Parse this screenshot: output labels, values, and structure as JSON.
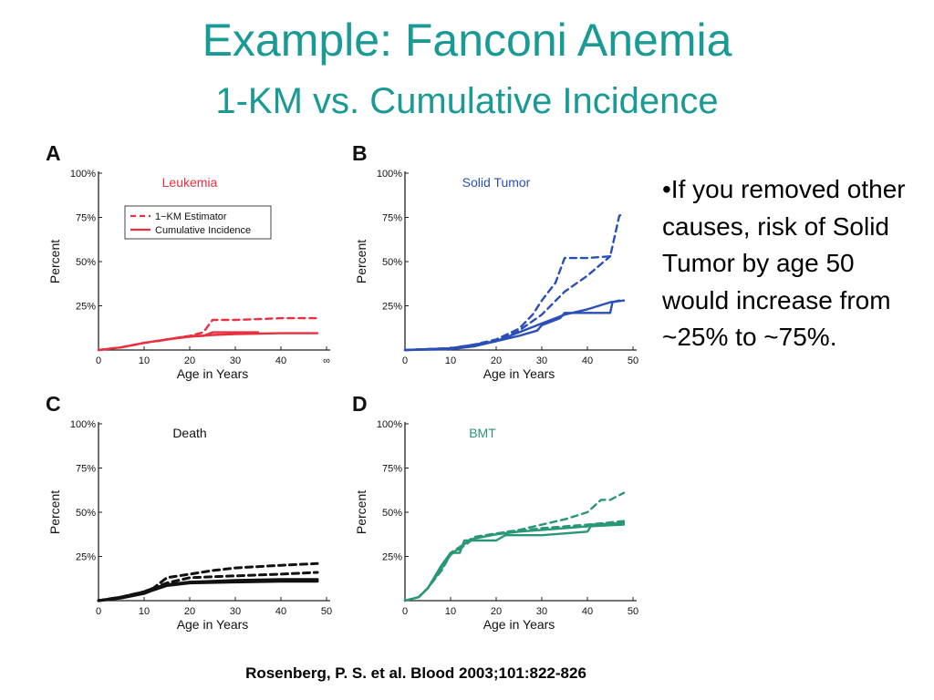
{
  "slide": {
    "title": "Example: Fanconi Anemia",
    "subtitle": "1-KM vs. Cumulative Incidence",
    "bullet": "•If you removed other causes, risk of Solid Tumor by age 50 would increase from ~25% to ~75%.",
    "citation": "Rosenberg, P. S. et al. Blood 2003;101:822-826"
  },
  "colors": {
    "title": "#1a9a95",
    "leukemia": "#e8303e",
    "solid_tumor": "#2b4fb8",
    "death": "#111111",
    "bmt": "#2a9678"
  },
  "chart_data": [
    {
      "type": "line",
      "panel_letter": "A",
      "title": "Leukemia",
      "xlabel": "Age in Years",
      "ylabel": "Percent",
      "xlim": [
        0,
        50
      ],
      "ylim": [
        0,
        100
      ],
      "x_ticks": [
        "0",
        "10",
        "20",
        "30",
        "40",
        "∞"
      ],
      "y_ticks": [
        "25%",
        "50%",
        "75%",
        "100%"
      ],
      "grid": false,
      "legend": {
        "position": "top-left",
        "entries": [
          "1−KM Estimator",
          "Cumulative Incidence"
        ]
      },
      "color": "#e8303e",
      "series": [
        {
          "name": "1−KM Estimator",
          "style": "dashed",
          "x": [
            0,
            5,
            10,
            15,
            20,
            23,
            25,
            30,
            35,
            40,
            48
          ],
          "y": [
            0,
            1.5,
            4,
            6,
            8,
            10,
            17,
            17,
            17.5,
            18,
            18
          ]
        },
        {
          "name": "Cumulative Incidence",
          "style": "solid",
          "x": [
            0,
            5,
            10,
            15,
            20,
            25,
            30,
            40,
            48
          ],
          "y": [
            0,
            1.5,
            4,
            6,
            7.5,
            8.5,
            9,
            9.5,
            9.5
          ]
        },
        {
          "style": "solid",
          "x": [
            13,
            15,
            20,
            23,
            25,
            30,
            35
          ],
          "y": [
            5,
            6,
            8,
            8,
            10,
            10,
            10
          ]
        }
      ]
    },
    {
      "type": "line",
      "panel_letter": "B",
      "title": "Solid Tumor",
      "xlabel": "Age in Years",
      "ylabel": "Percent",
      "xlim": [
        0,
        50
      ],
      "ylim": [
        0,
        100
      ],
      "x_ticks": [
        "0",
        "10",
        "20",
        "30",
        "40",
        "50"
      ],
      "y_ticks": [
        "25%",
        "50%",
        "75%",
        "100%"
      ],
      "grid": false,
      "color": "#2b4fb8",
      "series": [
        {
          "style": "dashed",
          "x": [
            0,
            10,
            15,
            20,
            25,
            28,
            30,
            33,
            35,
            40,
            45,
            47,
            48
          ],
          "y": [
            0,
            1,
            3,
            6,
            12,
            20,
            28,
            38,
            52,
            52,
            53,
            76,
            77
          ]
        },
        {
          "style": "dashed",
          "x": [
            0,
            10,
            15,
            20,
            25,
            30,
            35,
            40,
            45
          ],
          "y": [
            0,
            1,
            2,
            5,
            11,
            20,
            33,
            42,
            53
          ]
        },
        {
          "style": "solid",
          "x": [
            0,
            10,
            15,
            20,
            25,
            30,
            35,
            40,
            45,
            48
          ],
          "y": [
            0,
            0.5,
            2,
            5,
            10,
            15,
            20,
            23,
            27,
            28
          ]
        },
        {
          "style": "solid",
          "x": [
            0,
            10,
            15,
            20,
            25,
            29,
            30,
            34,
            35,
            45,
            45.5,
            47
          ],
          "y": [
            0,
            1,
            3,
            5,
            8,
            11,
            14,
            18,
            21,
            21,
            27,
            28
          ]
        }
      ]
    },
    {
      "type": "line",
      "panel_letter": "C",
      "title": "Death",
      "xlabel": "Age in Years",
      "ylabel": "Percent",
      "xlim": [
        0,
        50
      ],
      "ylim": [
        0,
        100
      ],
      "x_ticks": [
        "0",
        "10",
        "20",
        "30",
        "40",
        "50"
      ],
      "y_ticks": [
        "25%",
        "50%",
        "75%",
        "100%"
      ],
      "grid": false,
      "color": "#111111",
      "series": [
        {
          "style": "dashed",
          "x": [
            0,
            5,
            10,
            12,
            15,
            20,
            25,
            30,
            40,
            48
          ],
          "y": [
            0,
            2,
            5,
            7,
            13,
            15,
            17,
            18.5,
            20,
            21
          ]
        },
        {
          "style": "dashed",
          "x": [
            0,
            5,
            10,
            15,
            20,
            30,
            40,
            48
          ],
          "y": [
            0,
            2,
            5,
            10,
            13,
            14,
            15,
            16
          ]
        },
        {
          "style": "solid",
          "x": [
            0,
            5,
            10,
            12,
            15,
            20,
            25,
            30,
            40,
            48
          ],
          "y": [
            0,
            2,
            5,
            7,
            9,
            10.5,
            11,
            11.5,
            12,
            12
          ]
        },
        {
          "style": "solid",
          "x": [
            0,
            5,
            10,
            12,
            15,
            20,
            30,
            40,
            48
          ],
          "y": [
            0,
            1.5,
            4,
            6,
            8.5,
            10,
            10.5,
            11,
            11
          ]
        }
      ]
    },
    {
      "type": "line",
      "panel_letter": "D",
      "title": "BMT",
      "xlabel": "Age in Years",
      "ylabel": "Percent",
      "xlim": [
        0,
        50
      ],
      "ylim": [
        0,
        100
      ],
      "x_ticks": [
        "0",
        "10",
        "20",
        "30",
        "40",
        "50"
      ],
      "y_ticks": [
        "25%",
        "50%",
        "75%",
        "100%"
      ],
      "grid": false,
      "color": "#2a9678",
      "series": [
        {
          "style": "dashed",
          "x": [
            0,
            3,
            5,
            8,
            10,
            13,
            15,
            20,
            25,
            30,
            35,
            40,
            43,
            45,
            48
          ],
          "y": [
            0,
            2,
            7,
            18,
            27,
            32,
            36,
            38,
            40,
            43,
            46,
            50,
            57,
            57,
            61
          ]
        },
        {
          "style": "dashed",
          "x": [
            0,
            3,
            5,
            8,
            10,
            13,
            15,
            20,
            30,
            40,
            48
          ],
          "y": [
            0,
            2,
            7,
            17,
            26,
            31,
            35,
            38,
            41,
            43,
            45
          ]
        },
        {
          "style": "solid",
          "x": [
            0,
            3,
            5,
            8,
            10,
            13,
            15,
            20,
            25,
            30,
            40,
            48
          ],
          "y": [
            0,
            2,
            7,
            18,
            26,
            32,
            35,
            37.5,
            39,
            40,
            42,
            43
          ]
        },
        {
          "style": "solid",
          "x": [
            0,
            3,
            5,
            8,
            10,
            12,
            13,
            20,
            22,
            30,
            40,
            41,
            48
          ],
          "y": [
            0,
            2,
            7,
            20,
            27,
            27,
            34,
            34,
            37,
            37,
            39,
            43,
            44
          ]
        }
      ]
    }
  ]
}
